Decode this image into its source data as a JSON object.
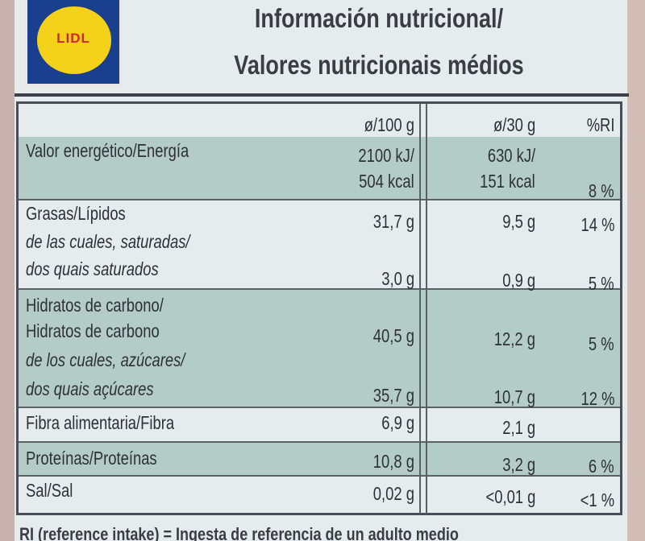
{
  "logo": "LIDL",
  "title": [
    "Información nutricional/",
    "Valores nutricionais médios"
  ],
  "table": {
    "header": [
      "ø/100 g",
      "ø/30 g",
      "%RI"
    ],
    "rows": [
      {
        "label": [
          "Valor energético/Energía"
        ],
        "per_100g": [
          "2100 kJ/",
          "504 kcal"
        ],
        "per_30g": [
          "630 kJ/",
          "151 kcal"
        ],
        "ri": "8 %"
      },
      {
        "label": [
          "Grasas/Lípidos"
        ],
        "per_100g": "31,7 g",
        "per_30g": "9,5 g",
        "ri": "14 %"
      },
      {
        "label": [
          "de las cuales, saturadas/",
          "dos quais saturados"
        ],
        "per_100g": "3,0 g",
        "per_30g": "0,9 g",
        "ri": "5 %"
      },
      {
        "label": [
          "Hidratos de carbono/",
          "Hidratos de carbono"
        ],
        "per_100g": "40,5 g",
        "per_30g": "12,2 g",
        "ri": "5 %"
      },
      {
        "label": [
          "de los cuales, azúcares/",
          "dos quais açúcares"
        ],
        "per_100g": "35,7 g",
        "per_30g": "10,7 g",
        "ri": "12 %"
      },
      {
        "label": [
          "Fibra alimentaria/Fibra"
        ],
        "per_100g": "6,9 g",
        "per_30g": "2,1 g"
      },
      {
        "label": [
          "Proteínas/Proteínas"
        ],
        "per_100g": "10,8 g",
        "per_30g": "3,2 g",
        "ri": "6 %"
      },
      {
        "label": [
          "Sal/Sal"
        ],
        "per_100g": "0,02 g",
        "per_30g": "<0,01 g",
        "ri": "<1 %"
      }
    ]
  },
  "footnote": "RI (reference intake) = Ingesta de referencia de un adulto medio"
}
